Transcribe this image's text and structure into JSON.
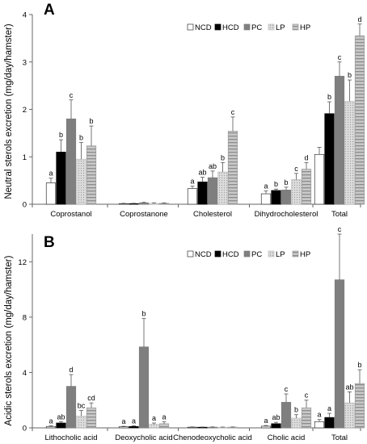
{
  "series_styles": [
    {
      "key": "NCD",
      "fill": "#ffffff",
      "stroke": "#333333"
    },
    {
      "key": "HCD",
      "fill": "#000000",
      "stroke": "#000000"
    },
    {
      "key": "PC",
      "fill": "#7f7f7f",
      "stroke": "#7f7f7f"
    },
    {
      "key": "LP",
      "fill": "#d9d9d9",
      "stroke": "#bbbbbb",
      "pattern": "dots"
    },
    {
      "key": "HP",
      "fill": "#bfbfbf",
      "stroke": "#999999",
      "pattern": "stripes"
    }
  ],
  "chart_data": [
    {
      "type": "bar",
      "panel_label": "A",
      "title": "",
      "xlabel": "",
      "ylabel": "Neutral sterols excretion (mg/day/hamster)",
      "ylim": [
        0,
        4
      ],
      "yticks": [
        0,
        1,
        2,
        3,
        4
      ],
      "legend_position": "top-right",
      "categories": [
        "Coprostanol",
        "Coprostanone",
        "Cholesterol",
        "Dihydrocholesterol",
        "Total"
      ],
      "series": [
        {
          "name": "NCD",
          "values": [
            0.45,
            0.01,
            0.33,
            0.22,
            1.05
          ],
          "errors": [
            0.1,
            0.01,
            0.05,
            0.06,
            0.15
          ],
          "labels": [
            "a",
            "",
            "a",
            "a",
            ""
          ]
        },
        {
          "name": "HCD",
          "values": [
            1.1,
            0.01,
            0.47,
            0.29,
            1.91
          ],
          "errors": [
            0.26,
            0.01,
            0.1,
            0.03,
            0.25
          ],
          "labels": [
            "b",
            "",
            "ab",
            "b",
            "b"
          ]
        },
        {
          "name": "PC",
          "values": [
            1.8,
            0.03,
            0.56,
            0.3,
            2.7
          ],
          "errors": [
            0.4,
            0.01,
            0.14,
            0.06,
            0.3
          ],
          "labels": [
            "c",
            "",
            "ab",
            "b",
            "c"
          ]
        },
        {
          "name": "LP",
          "values": [
            0.95,
            0.02,
            0.68,
            0.52,
            2.17
          ],
          "errors": [
            0.35,
            0.01,
            0.2,
            0.13,
            0.45
          ],
          "labels": [
            "b",
            "",
            "b",
            "c",
            "b"
          ]
        },
        {
          "name": "HP",
          "values": [
            1.23,
            0.02,
            1.54,
            0.74,
            3.55
          ],
          "errors": [
            0.42,
            0.01,
            0.3,
            0.14,
            0.25
          ],
          "labels": [
            "b",
            "",
            "c",
            "d",
            "d"
          ]
        }
      ]
    },
    {
      "type": "bar",
      "panel_label": "B",
      "title": "",
      "xlabel": "",
      "ylabel": "Acidic sterols excretion (mg/day/hamster)",
      "ylim": [
        0,
        14
      ],
      "yticks": [
        0,
        4,
        8,
        12
      ],
      "legend_position": "top-right",
      "categories": [
        "Lithocholic acid",
        "Deoxycholic acid",
        "Chenodeoxycholic acid",
        "Cholic acid",
        "Total"
      ],
      "series": [
        {
          "name": "NCD",
          "values": [
            0.1,
            0.08,
            0.05,
            0.12,
            0.45
          ],
          "errors": [
            0.05,
            0.03,
            0.02,
            0.05,
            0.15
          ],
          "labels": [
            "a",
            "a",
            "",
            "a",
            "a"
          ]
        },
        {
          "name": "HCD",
          "values": [
            0.35,
            0.1,
            0.04,
            0.3,
            0.75
          ],
          "errors": [
            0.1,
            0.05,
            0.02,
            0.1,
            0.3
          ],
          "labels": [
            "ab",
            "a",
            "",
            "ab",
            "a"
          ]
        },
        {
          "name": "PC",
          "values": [
            3.0,
            5.85,
            0.05,
            1.85,
            10.7
          ],
          "errors": [
            0.85,
            2.05,
            0.02,
            0.6,
            3.3
          ],
          "labels": [
            "d",
            "b",
            "",
            "c",
            "c"
          ]
        },
        {
          "name": "LP",
          "values": [
            0.85,
            0.25,
            0.04,
            0.7,
            1.8
          ],
          "errors": [
            0.4,
            0.1,
            0.02,
            0.25,
            0.8
          ],
          "labels": [
            "bc",
            "a",
            "",
            "b",
            "ab"
          ]
        },
        {
          "name": "HP",
          "values": [
            1.45,
            0.3,
            0.05,
            1.45,
            3.2
          ],
          "errors": [
            0.35,
            0.15,
            0.02,
            0.55,
            1.0
          ],
          "labels": [
            "cd",
            "a",
            "",
            "c",
            "b"
          ]
        }
      ]
    }
  ]
}
